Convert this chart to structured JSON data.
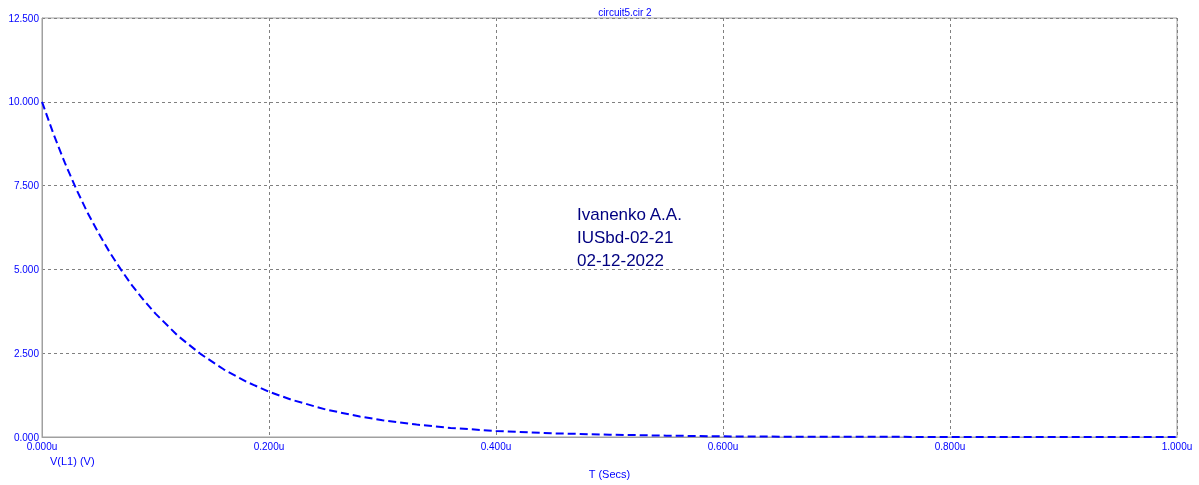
{
  "chart_data": {
    "type": "line",
    "title": "circuit5.cir 2",
    "xlabel": "T (Secs)",
    "annotations": [
      "Ivanenko A.A.",
      "IUSbd-02-21",
      "02-12-2022"
    ],
    "x": [
      0,
      0.01,
      0.02,
      0.03,
      0.04,
      0.05,
      0.06,
      0.07,
      0.08,
      0.09,
      0.1,
      0.12,
      0.14,
      0.16,
      0.18,
      0.2,
      0.22,
      0.25,
      0.28,
      0.3,
      0.33,
      0.36,
      0.4,
      0.45,
      0.5,
      0.55,
      0.6,
      0.65,
      0.7,
      0.8,
      0.9,
      1.0
    ],
    "series": [
      {
        "name": "V(L1) (V)",
        "color": "#0000ff",
        "values": [
          10,
          9.05,
          8.19,
          7.41,
          6.7,
          6.07,
          5.49,
          4.97,
          4.49,
          4.07,
          3.68,
          3.01,
          2.47,
          2.02,
          1.65,
          1.35,
          1.11,
          0.82,
          0.61,
          0.5,
          0.37,
          0.27,
          0.18,
          0.11,
          0.07,
          0.04,
          0.02,
          0.01,
          0.01,
          0,
          0,
          0
        ]
      }
    ],
    "xlim": [
      0,
      1.0
    ],
    "xticks": [
      {
        "value": 0,
        "label": "0.000u"
      },
      {
        "value": 0.2,
        "label": "0.200u"
      },
      {
        "value": 0.4,
        "label": "0.400u"
      },
      {
        "value": 0.6,
        "label": "0.600u"
      },
      {
        "value": 0.8,
        "label": "0.800u"
      },
      {
        "value": 1.0,
        "label": "1.000u"
      }
    ],
    "ylim": [
      0,
      12.5
    ],
    "yticks": [
      {
        "value": 0,
        "label": "0.000"
      },
      {
        "value": 2.5,
        "label": "2.500"
      },
      {
        "value": 5,
        "label": "5.000"
      },
      {
        "value": 7.5,
        "label": "7.500"
      },
      {
        "value": 10,
        "label": "10.000"
      },
      {
        "value": 12.5,
        "label": "12.500"
      }
    ],
    "grid": true,
    "legend": "bottom left",
    "marker": "none",
    "line_style": "dashed"
  }
}
